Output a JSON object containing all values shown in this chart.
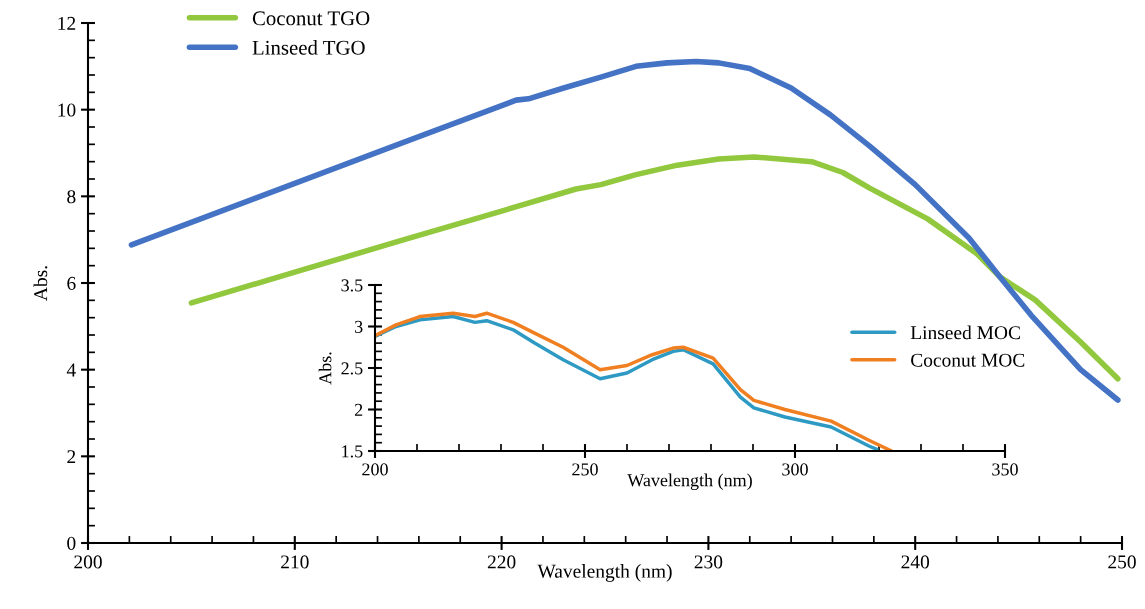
{
  "chart_data": [
    {
      "type": "line",
      "xlabel": "Wavelength (nm)",
      "ylabel": "Abs.",
      "xlim": [
        200,
        250
      ],
      "xticks": [
        200,
        210,
        220,
        230,
        240,
        250
      ],
      "ylim": [
        0,
        12
      ],
      "yticks": [
        0,
        2,
        4,
        6,
        8,
        10,
        12
      ],
      "grid": false,
      "legend": "top left",
      "marker": "none",
      "line_style": "solid",
      "series": [
        {
          "name": "Coconut TGO",
          "color": "#92c83e",
          "x": [
            205.0,
            210,
            215,
            220,
            223.6,
            224.8,
            226.5,
            228.5,
            230.5,
            232.2,
            235.0,
            236.5,
            237.8,
            240.6,
            243.0,
            244.1,
            245.8,
            248.0,
            249.8
          ],
          "values": [
            5.54,
            6.25,
            6.96,
            7.66,
            8.17,
            8.27,
            8.5,
            8.72,
            8.86,
            8.91,
            8.8,
            8.55,
            8.19,
            7.48,
            6.67,
            6.14,
            5.61,
            4.64,
            3.79
          ]
        },
        {
          "name": "Linseed TGO",
          "color": "#4472c4",
          "x": [
            202.1,
            210,
            215,
            220.7,
            221.3,
            223,
            224.8,
            226.5,
            228,
            229.4,
            230.5,
            232,
            234,
            235.9,
            237.8,
            240,
            242.6,
            244.1,
            245.6,
            248,
            249.8
          ],
          "values": [
            6.88,
            8.3,
            9.2,
            10.22,
            10.25,
            10.5,
            10.75,
            11.0,
            11.08,
            11.11,
            11.08,
            10.95,
            10.5,
            9.88,
            9.16,
            8.27,
            7.04,
            6.14,
            5.26,
            4.0,
            3.3
          ]
        }
      ]
    },
    {
      "type": "line",
      "xlabel": "Wavelength (nm)",
      "ylabel": "Abs.",
      "xlim": [
        200,
        350
      ],
      "xticks": [
        200,
        250,
        300,
        350
      ],
      "ylim": [
        1.5,
        3.5
      ],
      "yticks": [
        1.5,
        2,
        2.5,
        3,
        3.5
      ],
      "grid": false,
      "legend": "right",
      "marker": "none",
      "line_style": "solid",
      "series": [
        {
          "name": "Linseed MOC",
          "color": "#2e9ac4",
          "x": [
            200,
            205,
            210.7,
            218.6,
            223.8,
            226.6,
            232.9,
            238,
            244.8,
            253.6,
            260,
            266,
            271,
            273.4,
            280.5,
            287,
            290.2,
            297.6,
            308.6,
            317.6,
            319.5
          ],
          "values": [
            2.88,
            3.0,
            3.08,
            3.12,
            3.05,
            3.07,
            2.96,
            2.8,
            2.6,
            2.37,
            2.44,
            2.6,
            2.7,
            2.72,
            2.55,
            2.15,
            2.02,
            1.91,
            1.79,
            1.56,
            1.52
          ]
        },
        {
          "name": "Coconut MOC",
          "color": "#f07f21",
          "x": [
            200,
            205,
            210.7,
            218.6,
            223.8,
            226.6,
            232.9,
            238,
            244.8,
            253.6,
            260,
            266,
            271,
            273.4,
            280.5,
            287,
            290.2,
            297.6,
            308.6,
            317.6,
            323
          ],
          "values": [
            2.89,
            3.02,
            3.12,
            3.16,
            3.12,
            3.16,
            3.05,
            2.92,
            2.75,
            2.48,
            2.53,
            2.66,
            2.74,
            2.75,
            2.62,
            2.24,
            2.11,
            2.0,
            1.86,
            1.63,
            1.5
          ]
        }
      ]
    }
  ]
}
